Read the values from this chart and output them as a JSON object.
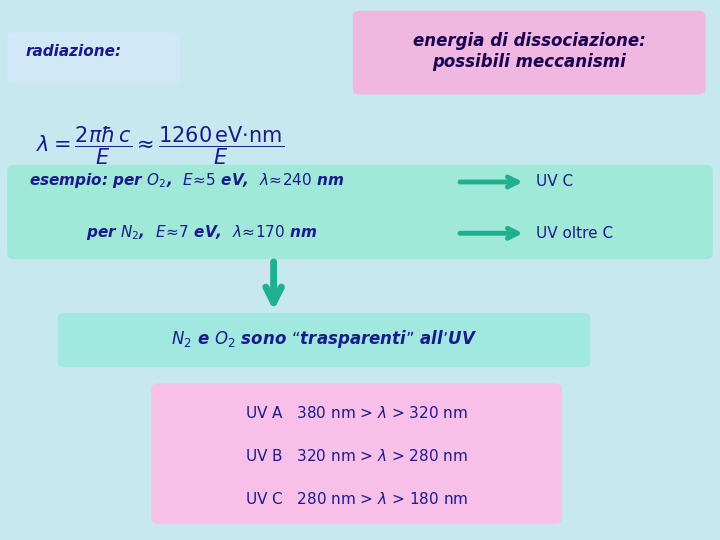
{
  "bg_color": "#c8e8f0",
  "title_box_color": "#f0b8e0",
  "title_text": "energia di dissociazione:\npossibili meccanismi",
  "radiazione_box_color": "#d0e8f8",
  "radiazione_text": "radiazione:",
  "formula_text": "$\\lambda = \\dfrac{2\\pi\\hbar\\, c}{E} \\approx \\dfrac{1260\\,\\mathrm{eV{\\cdot}nm}}{E}$",
  "esempio_box_color": "#a0e8d8",
  "esempio_line1": "esempio: per $O_2$,  $E\\approx 5$ eV,  $\\lambda\\approx 240$ nm",
  "esempio_line2": "per $N_2$,  $E\\approx 7$ eV,  $\\lambda\\approx 170$ nm",
  "uv_c": "UV C",
  "uv_oltre_c": "UV oltre C",
  "arrow_color": "#20b090",
  "trasparenti_box_color": "#a0e8e0",
  "trasparenti_text": "$N_2$ e $O_2$ sono “trasparenti” all’UV",
  "uvbox_color": "#f8c0e8",
  "uv_lines": [
    "UV A   380 nm > $\\lambda$ > 320 nm",
    "UV B   320 nm > $\\lambda$ > 280 nm",
    "UV C   280 nm > $\\lambda$ > 180 nm"
  ],
  "text_color": "#1a1a8c",
  "dark_text": "#000060"
}
